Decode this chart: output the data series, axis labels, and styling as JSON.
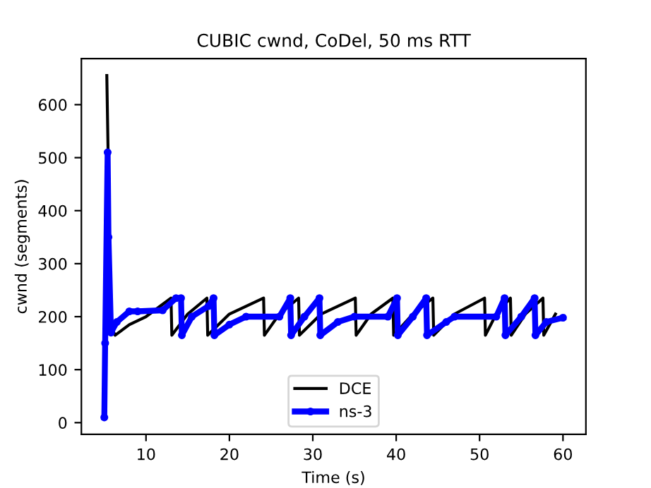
{
  "chart_data": {
    "type": "line",
    "title": "CUBIC cwnd, CoDel, 50 ms RTT",
    "xlabel": "Time (s)",
    "ylabel": "cwnd (segments)",
    "xlim": [
      2.25,
      62.75
    ],
    "ylim": [
      -22,
      687
    ],
    "xticks": [
      10,
      20,
      30,
      40,
      50,
      60
    ],
    "yticks": [
      0,
      100,
      200,
      300,
      400,
      500,
      600
    ],
    "grid": false,
    "legend": "bottom",
    "series": [
      {
        "name": "DCE",
        "color": "#000000",
        "marker": "none",
        "x": [
          5.3,
          5.8,
          6.0,
          6.3,
          8,
          10,
          13.0,
          13.1,
          15,
          17.3,
          17.4,
          20,
          24.1,
          24.2,
          26,
          28.3,
          28.4,
          31,
          35.1,
          35.2,
          37,
          39.6,
          39.7,
          42,
          44.4,
          44.5,
          47,
          50.6,
          50.7,
          52,
          53.7,
          53.8,
          55.5,
          57.6,
          57.7,
          59.1
        ],
        "values": [
          655,
          180,
          175,
          165,
          185,
          200,
          235,
          165,
          205,
          235,
          165,
          205,
          235,
          165,
          205,
          235,
          165,
          205,
          235,
          165,
          205,
          235,
          165,
          205,
          235,
          165,
          205,
          235,
          165,
          205,
          235,
          165,
          205,
          235,
          165,
          205
        ]
      },
      {
        "name": "ns-3",
        "color": "#0000ff",
        "marker": "circle",
        "x": [
          5.0,
          5.1,
          5.4,
          5.5,
          5.8,
          6.5,
          8,
          9,
          12,
          13.6,
          14.2,
          14.3,
          15.5,
          17.5,
          18.1,
          18.2,
          20,
          22,
          26,
          27.3,
          27.4,
          29,
          30.8,
          30.9,
          33,
          35,
          39,
          40.1,
          40.2,
          42,
          43.6,
          43.7,
          46,
          47,
          52,
          53.0,
          53.1,
          55,
          56.6,
          56.7,
          58,
          60
        ],
        "values": [
          10,
          150,
          510,
          350,
          170,
          190,
          210,
          210,
          212,
          235,
          235,
          165,
          200,
          220,
          235,
          165,
          185,
          200,
          200,
          235,
          165,
          200,
          235,
          165,
          190,
          200,
          200,
          235,
          165,
          200,
          235,
          165,
          190,
          200,
          200,
          235,
          165,
          200,
          235,
          165,
          190,
          198
        ]
      }
    ]
  }
}
